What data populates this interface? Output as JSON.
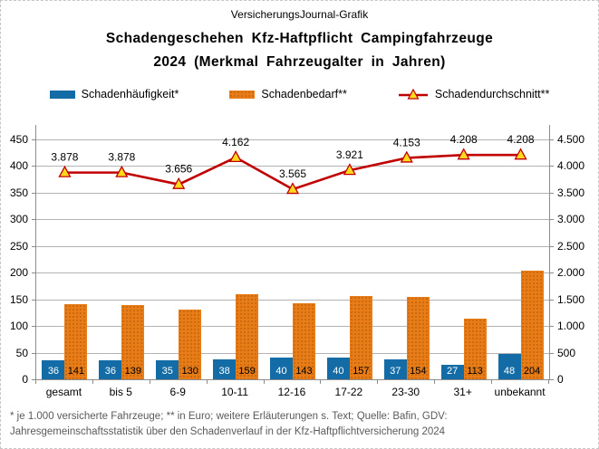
{
  "header": {
    "brand": "VersicherungsJournal-Grafik",
    "title_line1": "Schadengeschehen Kfz-Haftpflicht Campingfahrzeuge",
    "title_line2": "2024 (Merkmal Fahrzeugalter in Jahren)"
  },
  "legend": {
    "items": [
      {
        "label": "Schadenhäufigkeit*"
      },
      {
        "label": "Schadenbedarf**"
      },
      {
        "label": "Schadendurchschnitt**"
      }
    ]
  },
  "colors": {
    "bar_blue": "#136ca5",
    "bar_orange": "#e87d17",
    "orange_dot": "#c9680e",
    "line_red": "#c00000",
    "marker_yellow": "#ffd91c",
    "grid": "#b3b3b3",
    "axis": "#8c8c8c",
    "footnote_text": "#5a5a5a"
  },
  "chart_data": {
    "type": "bar",
    "title": "Schadengeschehen Kfz-Haftpflicht Campingfahrzeuge 2024 (Merkmal Fahrzeugalter in Jahren)",
    "categories": [
      "gesamt",
      "bis 5",
      "6-9",
      "10-11",
      "12-16",
      "17-22",
      "23-30",
      "31+",
      "unbekannt"
    ],
    "series": [
      {
        "name": "Schadenhäufigkeit*",
        "type": "bar",
        "axis": "left",
        "values": [
          36,
          36,
          35,
          38,
          40,
          40,
          37,
          27,
          48
        ],
        "label_color": "#ffffff"
      },
      {
        "name": "Schadenbedarf**",
        "type": "bar",
        "axis": "left",
        "values": [
          141,
          139,
          130,
          159,
          143,
          157,
          154,
          113,
          204
        ],
        "label_color": "#000000"
      },
      {
        "name": "Schadendurchschnitt**",
        "type": "line",
        "axis": "right",
        "values": [
          3878,
          3878,
          3656,
          4162,
          3565,
          3921,
          4153,
          4208,
          4208
        ],
        "point_labels": [
          "3.878",
          "3.878",
          "3.656",
          "4.162",
          "3.565",
          "3.921",
          "4.153",
          "4.208",
          "4.208"
        ]
      }
    ],
    "left_axis": {
      "min": 0,
      "max": 477,
      "tick_step": 50,
      "ticks": [
        0,
        50,
        100,
        150,
        200,
        250,
        300,
        350,
        400,
        450
      ]
    },
    "right_axis": {
      "min": 0,
      "max": 4770,
      "tick_step": 500,
      "tick_labels": [
        "0",
        "500",
        "1.000",
        "1.500",
        "2.000",
        "2.500",
        "3.000",
        "3.500",
        "4.000",
        "4.500"
      ]
    },
    "grid": true,
    "legend_position": "top",
    "xlabel": "",
    "ylabel_left": "",
    "ylabel_right": ""
  },
  "footnote": {
    "line1": "* je 1.000 versicherte Fahrzeuge; ** in Euro; weitere Erläuterungen s. Text; Quelle: Bafin, GDV:",
    "line2": "Jahresgemeinschaftsstatistik über den Schadenverlauf in der Kfz-Haftpflichtversicherung 2024"
  }
}
